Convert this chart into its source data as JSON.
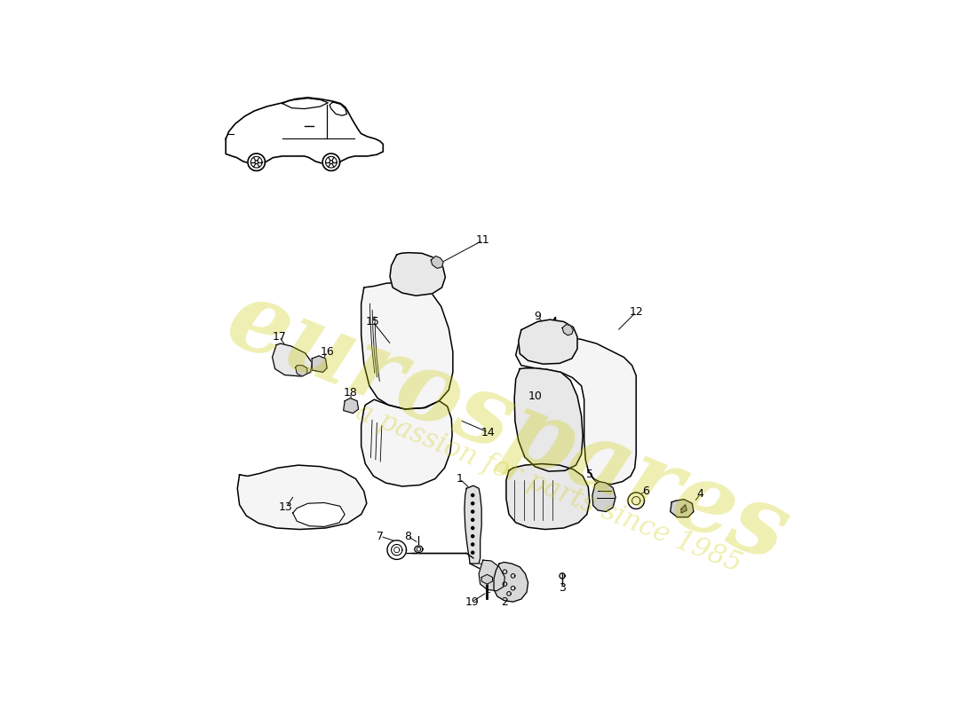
{
  "bg_color": "#ffffff",
  "watermark_text1": "eurospares",
  "watermark_text2": "a passion for parts since 1985",
  "watermark_color": "#cccc00",
  "watermark_alpha": 0.3,
  "line_color": "#000000",
  "fill_light": "#f5f5f5",
  "fill_mid": "#e8e8e8"
}
